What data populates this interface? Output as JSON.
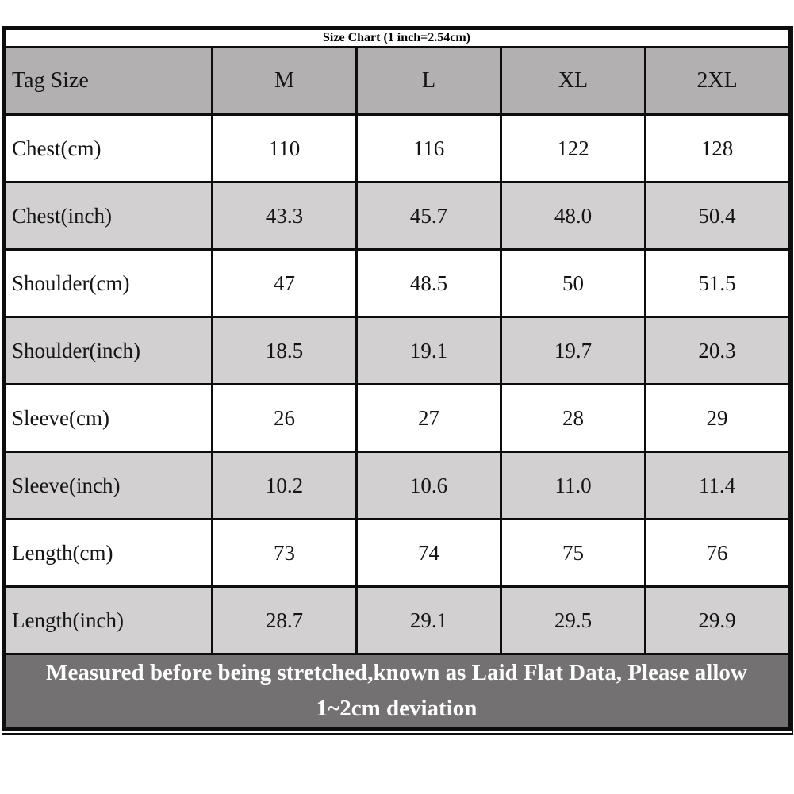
{
  "table": {
    "title": "Size Chart (1 inch=2.54cm)",
    "columns": [
      "Tag Size",
      "M",
      "L",
      "XL",
      "2XL"
    ],
    "rows": [
      {
        "label": "Chest(cm)",
        "values": [
          "110",
          "116",
          "122",
          "128"
        ]
      },
      {
        "label": "Chest(inch)",
        "values": [
          "43.3",
          "45.7",
          "48.0",
          "50.4"
        ]
      },
      {
        "label": "Shoulder(cm)",
        "values": [
          "47",
          "48.5",
          "50",
          "51.5"
        ]
      },
      {
        "label": "Shoulder(inch)",
        "values": [
          "18.5",
          "19.1",
          "19.7",
          "20.3"
        ]
      },
      {
        "label": "Sleeve(cm)",
        "values": [
          "26",
          "27",
          "28",
          "29"
        ]
      },
      {
        "label": "Sleeve(inch)",
        "values": [
          "10.2",
          "10.6",
          "11.0",
          "11.4"
        ]
      },
      {
        "label": "Length(cm)",
        "values": [
          "73",
          "74",
          "75",
          "76"
        ]
      },
      {
        "label": "Length(inch)",
        "values": [
          "28.7",
          "29.1",
          "29.5",
          "29.9"
        ]
      }
    ],
    "footer": "Measured before being stretched,known as Laid Flat Data, Please allow 1~2cm deviation",
    "colors": {
      "header_footer_bg": "#747172",
      "tag_row_bg": "#b2b0b1",
      "alt_row_bg": "#d2d0d1",
      "white_row_bg": "#ffffff",
      "border": "#0d0d0d",
      "title_text": "#ffffff",
      "cell_text": "#141414"
    }
  }
}
